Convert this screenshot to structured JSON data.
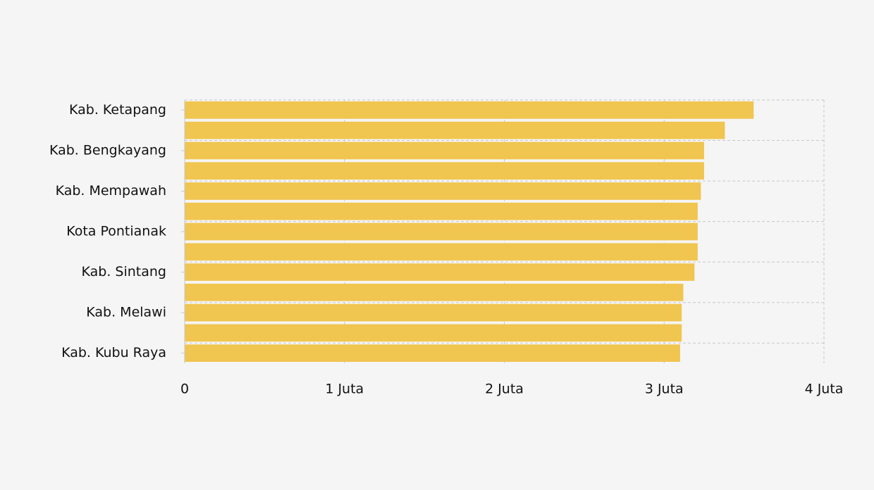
{
  "chart_data": {
    "type": "bar",
    "orientation": "horizontal",
    "categories": [
      "Kab. Ketapang",
      null,
      "Kab. Bengkayang",
      null,
      "Kab. Mempawah",
      null,
      "Kota Pontianak",
      null,
      "Kab. Sintang",
      null,
      "Kab. Melawi",
      null,
      "Kab. Kubu Raya"
    ],
    "values": [
      3560000,
      3380000,
      3250000,
      3250000,
      3230000,
      3210000,
      3210000,
      3210000,
      3190000,
      3120000,
      3110000,
      3110000,
      3100000
    ],
    "color": "#f0c550",
    "xlim": [
      0,
      4000000
    ],
    "xticks": [
      0,
      {
        "value": 1000000,
        "label": "1 Juta"
      },
      {
        "value": 2000000,
        "label": "2 Juta"
      },
      {
        "value": 3000000,
        "label": "3 Juta"
      },
      {
        "value": 4000000,
        "label": "4 Juta"
      }
    ],
    "grid": true
  }
}
